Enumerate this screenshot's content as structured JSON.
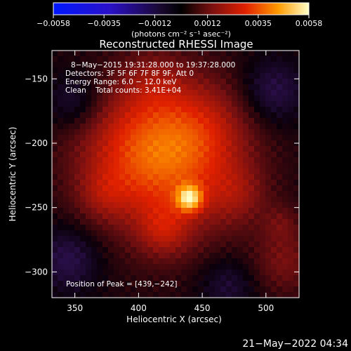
{
  "chart_data": {
    "type": "heatmap",
    "title": "Reconstructed RHESSI Image",
    "xlabel": "Heliocentric X (arcsec)",
    "ylabel": "Heliocentric Y (arcsec)",
    "xlim": [
      332,
      526
    ],
    "ylim": [
      -320,
      -128
    ],
    "x_ticks": [
      350,
      400,
      450,
      500
    ],
    "y_ticks": [
      -150,
      -200,
      -250,
      -300
    ],
    "x_tick_labels": [
      "350",
      "400",
      "450",
      "500"
    ],
    "y_tick_labels": [
      "−150",
      "−200",
      "−250",
      "−300"
    ],
    "colorbar": {
      "min": -0.0058,
      "max": 0.0058,
      "tick_values": [
        -0.0058,
        -0.0035,
        -0.0012,
        0.0012,
        0.0035,
        0.0058
      ],
      "tick_labels": [
        "−0.0058",
        "−0.0035",
        "−0.0012",
        "0.0012",
        "0.0035",
        "0.0058"
      ],
      "unit_label": "(photons cm⁻² s⁻¹ asec⁻²)",
      "colormap": "rhessi"
    },
    "annotations": [
      "8−May−2015 19:31:28.000 to 19:37:28.000",
      "Detectors: 3F 5F 6F 7F 8F 9F, Att 0",
      "Energy Range: 6.0 − 12.0 keV",
      "Clean    Total counts: 3.41E+04"
    ],
    "peak_label": "Position of Peak = [439,−242]",
    "peak": {
      "x": 439,
      "y": -242
    },
    "sources": [
      {
        "x": 440,
        "y": -243,
        "sigma": 7,
        "amp": 0.0034
      },
      {
        "x": 425,
        "y": -222,
        "sigma": 40,
        "amp": 0.0022
      },
      {
        "x": 396,
        "y": -200,
        "sigma": 34,
        "amp": 0.0016
      },
      {
        "x": 450,
        "y": -188,
        "sigma": 28,
        "amp": 0.0013
      },
      {
        "x": 420,
        "y": -268,
        "sigma": 14,
        "amp": 0.0012
      },
      {
        "x": 478,
        "y": -240,
        "sigma": 16,
        "amp": 0.0009
      },
      {
        "x": 372,
        "y": -240,
        "sigma": 14,
        "amp": 0.0008
      },
      {
        "x": 412,
        "y": -150,
        "sigma": 18,
        "amp": 0.0008
      },
      {
        "x": 515,
        "y": -292,
        "sigma": 18,
        "amp": 0.0011
      },
      {
        "x": 512,
        "y": -262,
        "sigma": 10,
        "amp": 0.0007
      },
      {
        "x": 345,
        "y": -290,
        "sigma": 18,
        "amp": -0.0012
      },
      {
        "x": 350,
        "y": -168,
        "sigma": 16,
        "amp": -0.0011
      },
      {
        "x": 505,
        "y": -160,
        "sigma": 18,
        "amp": -0.0012
      },
      {
        "x": 470,
        "y": -310,
        "sigma": 16,
        "amp": -0.0009
      }
    ]
  },
  "footer": {
    "timestamp": "21−May−2022 04:34"
  }
}
